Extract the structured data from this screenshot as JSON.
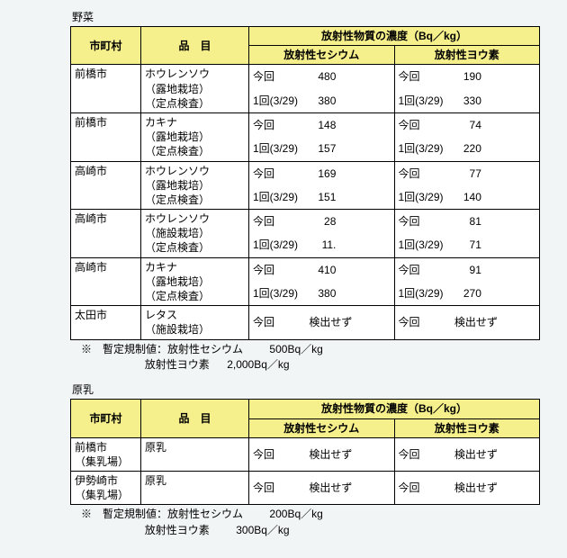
{
  "sections": [
    {
      "title": "野菜",
      "headers": {
        "city": "市町村",
        "item": "品　目",
        "conc": "放射性物質の濃度（Bq／kg）",
        "cesium": "放射性セシウム",
        "iodine": "放射性ヨウ素"
      },
      "rows": [
        {
          "city": "前橋市",
          "item": [
            "ホウレンソウ",
            "（露地栽培）",
            "（定点検査）"
          ],
          "double": true,
          "cesium_now_lbl": "今回",
          "cesium_now_val": "480",
          "cesium_prev_lbl": "1回(3/29)",
          "cesium_prev_val": "380",
          "iodine_now_lbl": "今回",
          "iodine_now_val": "190",
          "iodine_prev_lbl": "1回(3/29)",
          "iodine_prev_val": "330"
        },
        {
          "city": "前橋市",
          "item": [
            "カキナ",
            "（露地栽培）",
            "（定点検査）"
          ],
          "double": true,
          "cesium_now_lbl": "今回",
          "cesium_now_val": "148",
          "cesium_prev_lbl": "1回(3/29)",
          "cesium_prev_val": "157",
          "iodine_now_lbl": "今回",
          "iodine_now_val": "74",
          "iodine_prev_lbl": "1回(3/29)",
          "iodine_prev_val": "220"
        },
        {
          "city": "高崎市",
          "item": [
            "ホウレンソウ",
            "（露地栽培）",
            "（定点検査）"
          ],
          "double": true,
          "cesium_now_lbl": "今回",
          "cesium_now_val": "169",
          "cesium_prev_lbl": "1回(3/29)",
          "cesium_prev_val": "151",
          "iodine_now_lbl": "今回",
          "iodine_now_val": "77",
          "iodine_prev_lbl": "1回(3/29)",
          "iodine_prev_val": "140"
        },
        {
          "city": "高崎市",
          "item": [
            "ホウレンソウ",
            "（施設栽培）",
            "（定点検査）"
          ],
          "double": true,
          "cesium_now_lbl": "今回",
          "cesium_now_val": "28",
          "cesium_prev_lbl": "1回(3/29)",
          "cesium_prev_val": "11.",
          "iodine_now_lbl": "今回",
          "iodine_now_val": "81",
          "iodine_prev_lbl": "1回(3/29)",
          "iodine_prev_val": "71"
        },
        {
          "city": "高崎市",
          "item": [
            "カキナ",
            "（露地栽培）",
            "（定点検査）"
          ],
          "double": true,
          "cesium_now_lbl": "今回",
          "cesium_now_val": "410",
          "cesium_prev_lbl": "1回(3/29)",
          "cesium_prev_val": "380",
          "iodine_now_lbl": "今回",
          "iodine_now_val": "91",
          "iodine_prev_lbl": "1回(3/29)",
          "iodine_prev_val": "270"
        },
        {
          "city": "太田市",
          "item": [
            "レタス",
            "（施設栽培）"
          ],
          "double": false,
          "cesium_now_lbl": "今回",
          "cesium_now_val": "検出せず",
          "iodine_now_lbl": "今回",
          "iodine_now_val": "検出せず"
        }
      ],
      "note": {
        "line1_a": "※　暫定規制値：放射性セシウム",
        "line1_b": "500Bq／kg",
        "line2_a": "放射性ヨウ素",
        "line2_b": "2,000Bq／kg"
      }
    },
    {
      "title": "原乳",
      "headers": {
        "city": "市町村",
        "item": "品　目",
        "conc": "放射性物質の濃度（Bq／kg）",
        "cesium": "放射性セシウム",
        "iodine": "放射性ヨウ素"
      },
      "rows": [
        {
          "city_lines": [
            "前橋市",
            "（集乳場）"
          ],
          "item": [
            "原乳"
          ],
          "double": false,
          "cesium_now_lbl": "今回",
          "cesium_now_val": "検出せず",
          "iodine_now_lbl": "今回",
          "iodine_now_val": "検出せず"
        },
        {
          "city_lines": [
            "伊勢崎市",
            "（集乳場）"
          ],
          "item": [
            "原乳"
          ],
          "double": false,
          "cesium_now_lbl": "今回",
          "cesium_now_val": "検出せず",
          "iodine_now_lbl": "今回",
          "iodine_now_val": "検出せず"
        }
      ],
      "note": {
        "line1_a": "※　暫定規制値：放射性セシウム",
        "line1_b": "200Bq／kg",
        "line2_a": "放射性ヨウ素",
        "line2_b": "300Bq／kg"
      }
    }
  ],
  "colors": {
    "background": "#f2f5f5",
    "header_bg": "#f6f08c",
    "border": "#000000"
  },
  "col_widths": [
    "78px",
    "120px",
    "auto",
    "auto"
  ]
}
